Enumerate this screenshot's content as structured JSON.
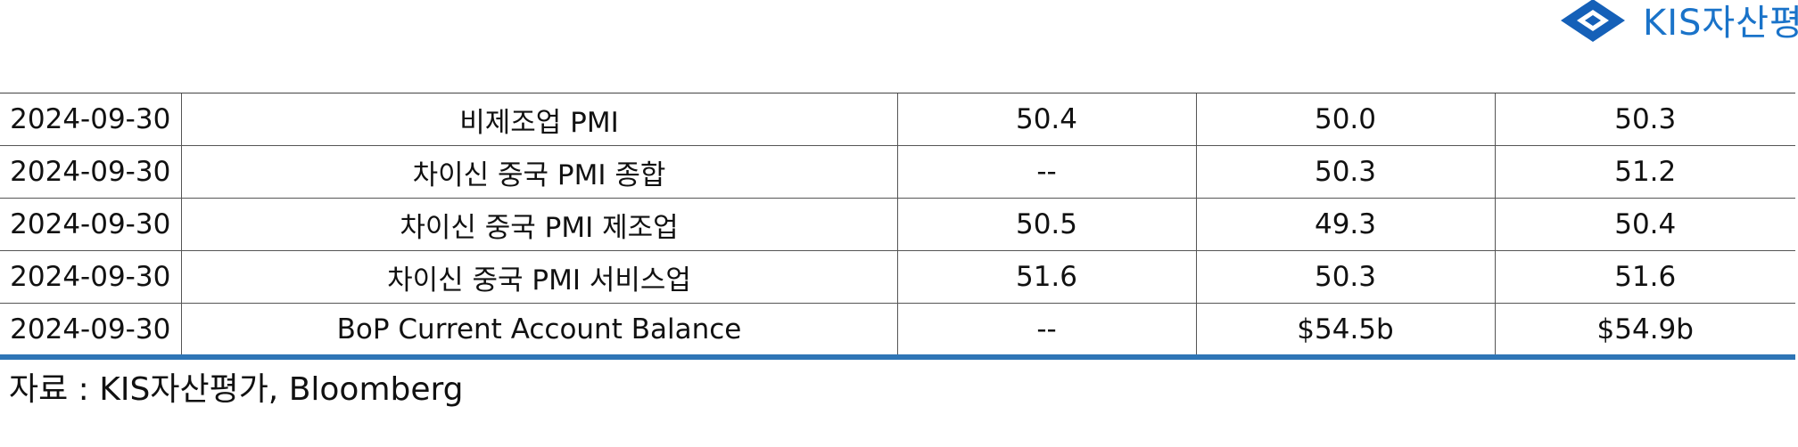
{
  "logo": {
    "text": "KIS자산평가",
    "icon": "kis-diamond-logo-icon",
    "color": "#1a73c9"
  },
  "table": {
    "rows": [
      [
        "2024-09-30",
        "비제조업 PMI",
        "50.4",
        "50.0",
        "50.3"
      ],
      [
        "2024-09-30",
        "차이신 중국 PMI 종합",
        "--",
        "50.3",
        "51.2"
      ],
      [
        "2024-09-30",
        "차이신 중국 PMI 제조업",
        "50.5",
        "49.3",
        "50.4"
      ],
      [
        "2024-09-30",
        "차이신 중국 PMI 서비스업",
        "51.6",
        "50.3",
        "51.6"
      ],
      [
        "2024-09-30",
        "BoP Current Account Balance",
        "--",
        "$54.5b",
        "$54.9b"
      ]
    ]
  },
  "colors": {
    "accent_rule": "#2e75b6",
    "grid_line": "#555555"
  },
  "source_note": "자료 : KIS자산평가, Bloomberg"
}
